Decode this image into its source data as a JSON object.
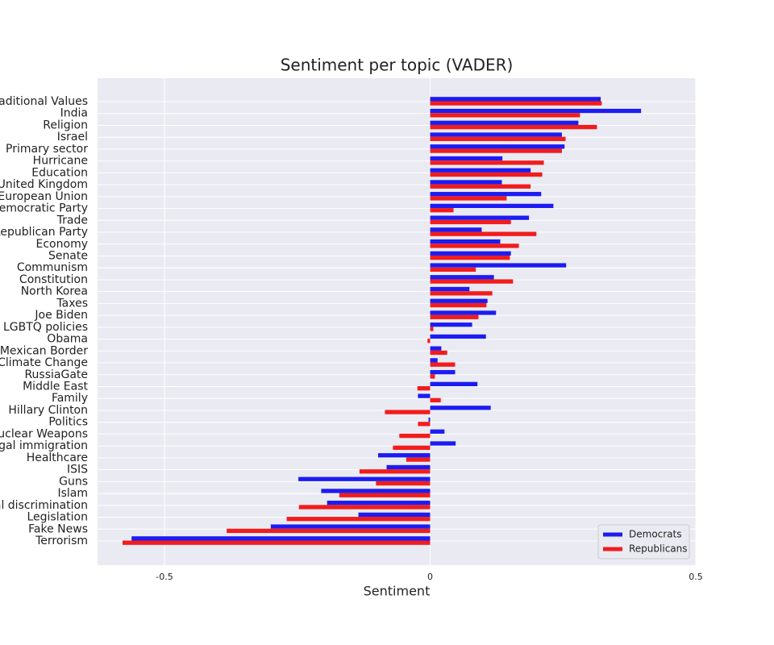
{
  "chart_data": {
    "type": "hbar",
    "title": "Sentiment per topic (VADER)",
    "xlabel": "Sentiment",
    "categories": [
      "Traditional Values",
      "India",
      "Religion",
      "Israel",
      "Primary sector",
      "Hurricane",
      "Education",
      "United Kingdom",
      "European Union",
      "Democratic Party",
      "Trade",
      "Republican Party",
      "Economy",
      "Senate",
      "Communism",
      "Constitution",
      "North Korea",
      "Taxes",
      "Joe Biden",
      "LGBTQ policies",
      "Obama",
      "Mexican Border",
      "Climate Change",
      "RussiaGate",
      "Middle East",
      "Family",
      "Hillary Clinton",
      "Politics",
      "Nuclear Weapons",
      "Illegal immigration",
      "Healthcare",
      "ISIS",
      "Guns",
      "Islam",
      "Racial discrimination",
      "Legislation",
      "Fake News",
      "Terrorism"
    ],
    "series": [
      {
        "name": "Democrats",
        "color": "#1c1cf2",
        "values": [
          0.321,
          0.397,
          0.279,
          0.248,
          0.253,
          0.136,
          0.189,
          0.135,
          0.209,
          0.232,
          0.186,
          0.097,
          0.132,
          0.152,
          0.256,
          0.12,
          0.074,
          0.108,
          0.124,
          0.079,
          0.105,
          0.021,
          0.014,
          0.047,
          0.089,
          -0.023,
          0.114,
          -0.003,
          0.027,
          0.048,
          -0.098,
          -0.082,
          -0.248,
          -0.205,
          -0.194,
          -0.135,
          -0.3,
          -0.562
        ]
      },
      {
        "name": "Republicans",
        "color": "#f21c1c",
        "values": [
          0.323,
          0.282,
          0.314,
          0.255,
          0.248,
          0.214,
          0.211,
          0.189,
          0.144,
          0.044,
          0.152,
          0.2,
          0.167,
          0.15,
          0.086,
          0.156,
          0.117,
          0.106,
          0.091,
          0.006,
          -0.005,
          0.032,
          0.047,
          0.009,
          -0.024,
          0.02,
          -0.085,
          -0.023,
          -0.058,
          -0.07,
          -0.045,
          -0.133,
          -0.102,
          -0.171,
          -0.247,
          -0.27,
          -0.383,
          -0.579
        ]
      }
    ],
    "xlim": [
      -0.626,
      0.5
    ],
    "xticks": [
      -0.5,
      0,
      0.5
    ],
    "grid": true,
    "legend": "lower right"
  }
}
